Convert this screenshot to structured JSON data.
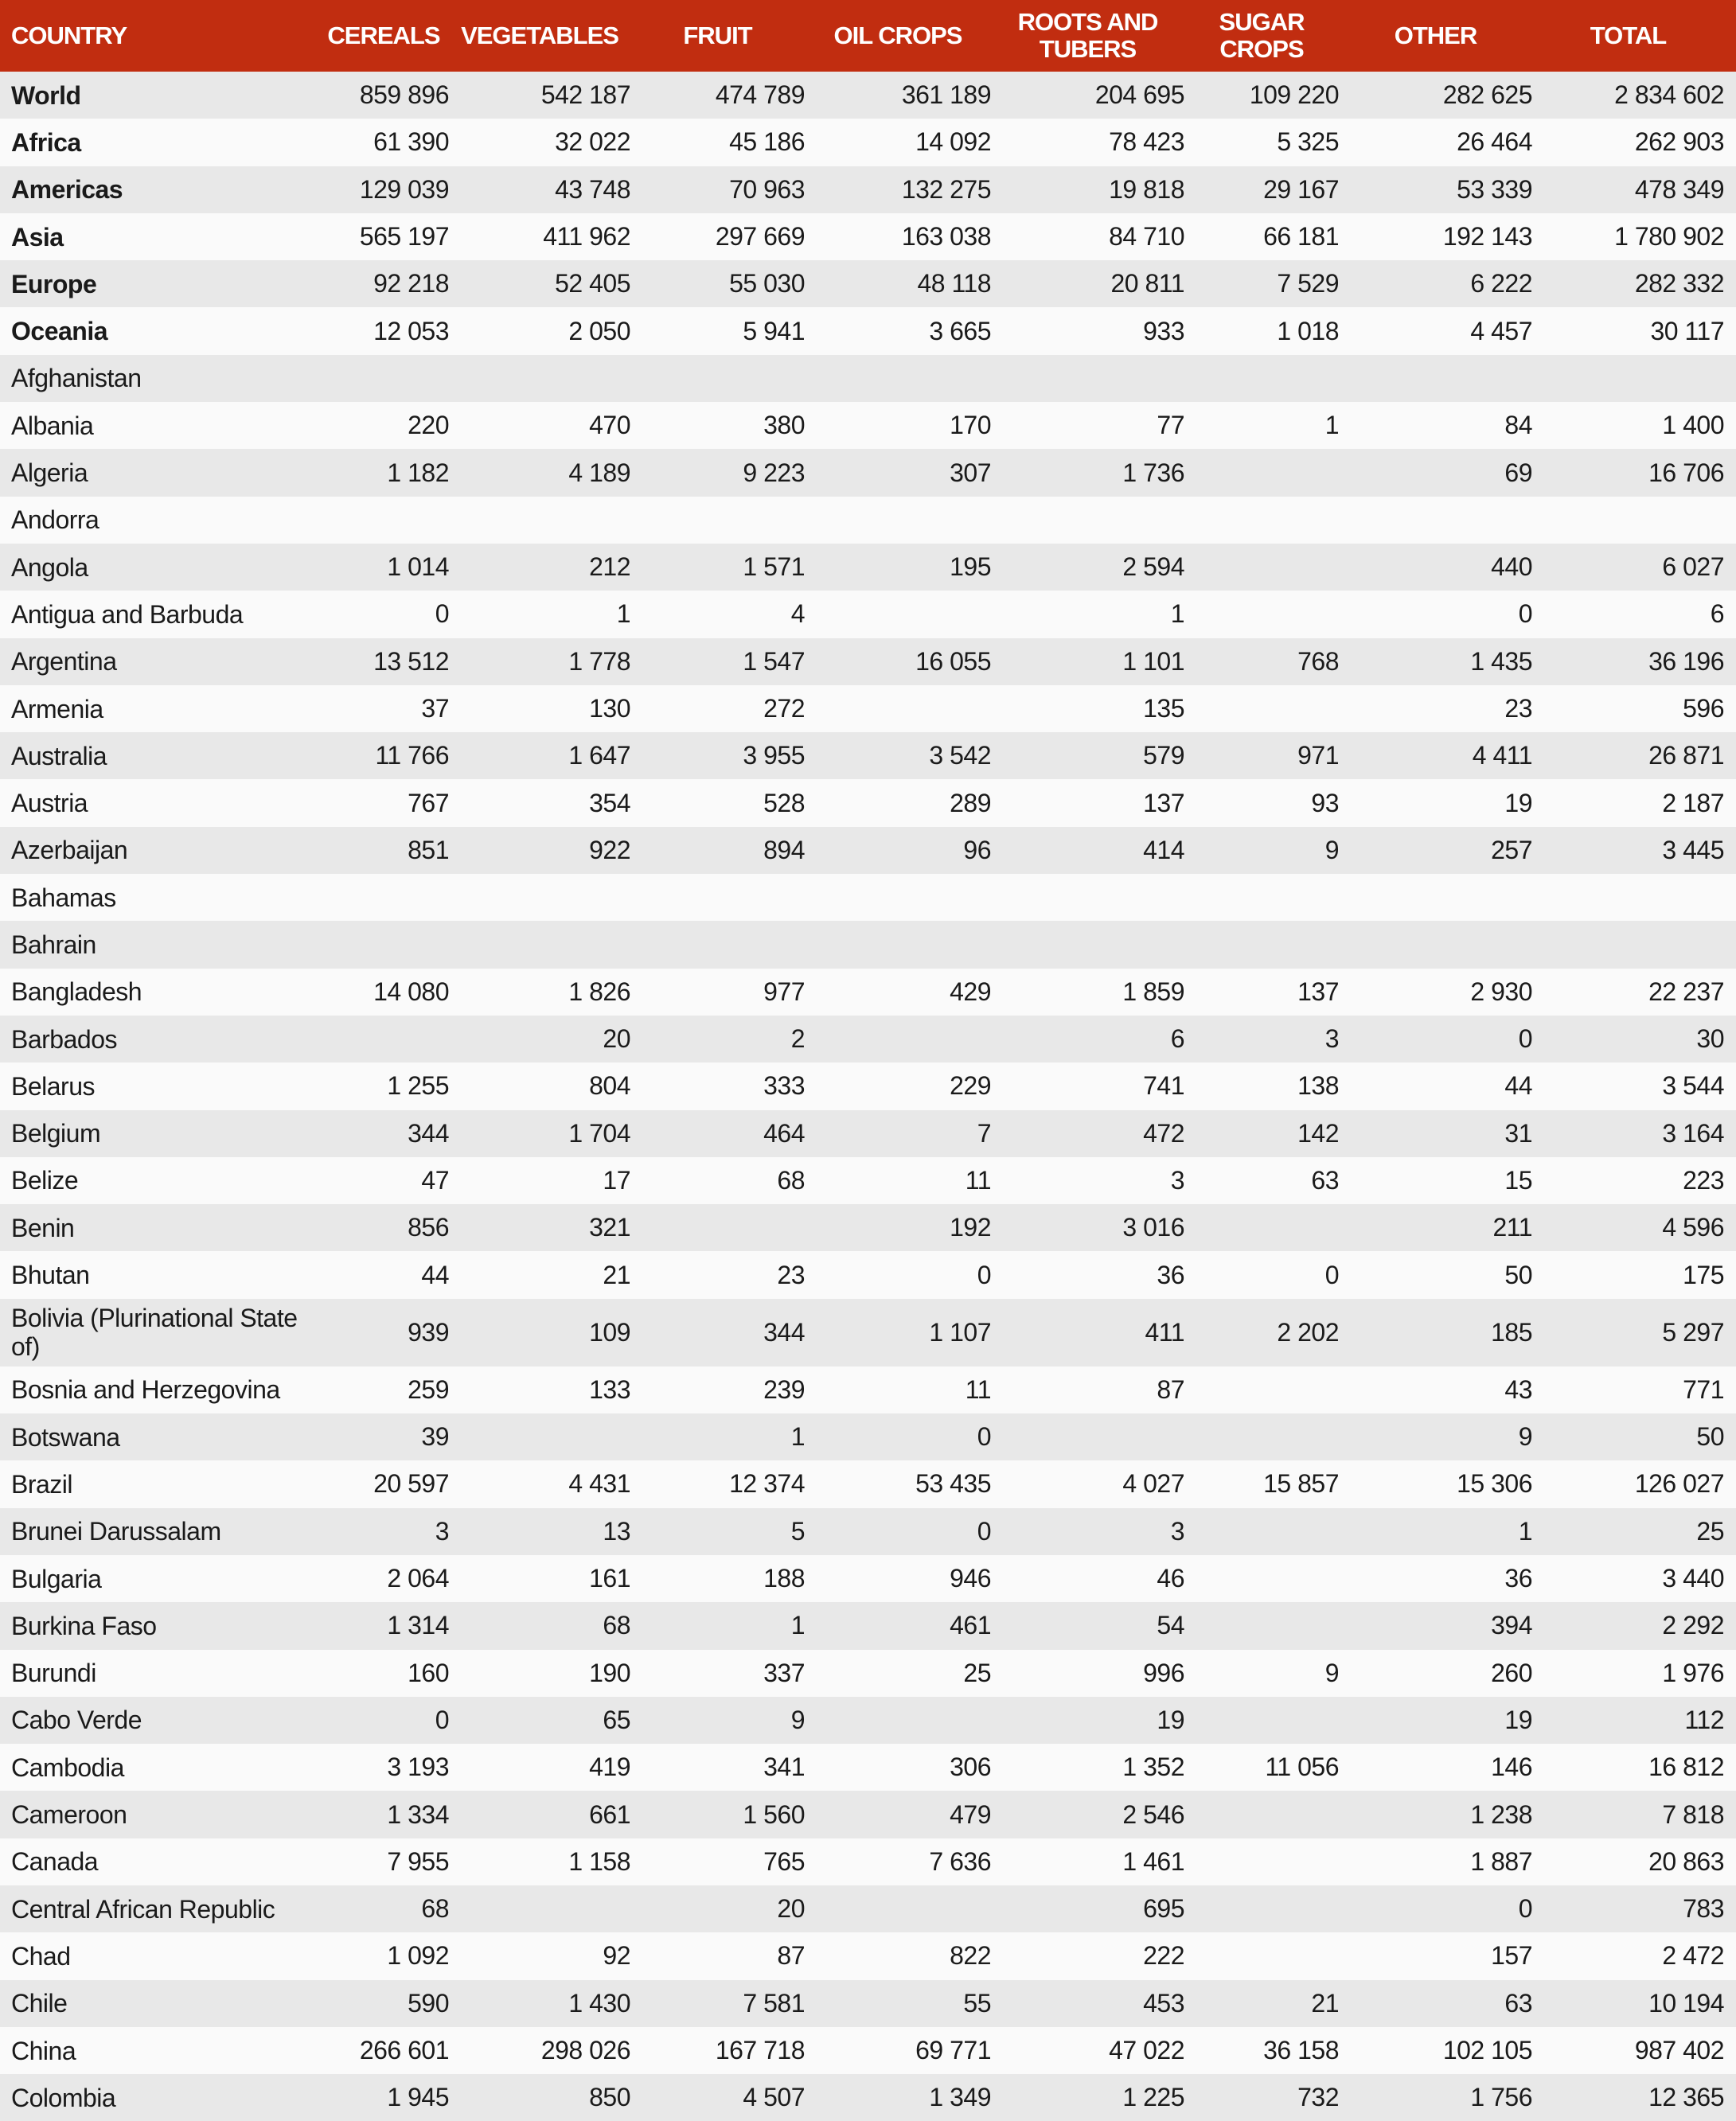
{
  "headers": [
    "COUNTRY",
    "CEREALS",
    "VEGETABLES",
    "FRUIT",
    "OIL CROPS",
    "ROOTS AND TUBERS",
    "SUGAR CROPS",
    "OTHER",
    "TOTAL"
  ],
  "colors": {
    "header_bg": "#c12d10",
    "row_shaded": "#e8e8e8",
    "row_plain": "#fafafa"
  },
  "rows": [
    {
      "name": "World",
      "bold": true,
      "values": [
        "859 896",
        "542 187",
        "474 789",
        "361 189",
        "204 695",
        "109 220",
        "282 625",
        "2 834 602"
      ]
    },
    {
      "name": "Africa",
      "bold": true,
      "values": [
        "61 390",
        "32 022",
        "45 186",
        "14 092",
        "78 423",
        "5 325",
        "26 464",
        "262 903"
      ]
    },
    {
      "name": "Americas",
      "bold": true,
      "values": [
        "129 039",
        "43 748",
        "70 963",
        "132 275",
        "19 818",
        "29 167",
        "53 339",
        "478 349"
      ]
    },
    {
      "name": "Asia",
      "bold": true,
      "values": [
        "565 197",
        "411 962",
        "297 669",
        "163 038",
        "84 710",
        "66 181",
        "192 143",
        "1 780 902"
      ]
    },
    {
      "name": "Europe",
      "bold": true,
      "values": [
        "92 218",
        "52 405",
        "55 030",
        "48 118",
        "20 811",
        "7 529",
        "6 222",
        "282 332"
      ]
    },
    {
      "name": "Oceania",
      "bold": true,
      "values": [
        "12 053",
        "2 050",
        "5 941",
        "3 665",
        "933",
        "1 018",
        "4 457",
        "30 117"
      ]
    },
    {
      "name": "Afghanistan",
      "values": [
        "",
        "",
        "",
        "",
        "",
        "",
        "",
        ""
      ]
    },
    {
      "name": "Albania",
      "values": [
        "220",
        "470",
        "380",
        "170",
        "77",
        "1",
        "84",
        "1 400"
      ]
    },
    {
      "name": "Algeria",
      "values": [
        "1 182",
        "4 189",
        "9 223",
        "307",
        "1 736",
        "",
        "69",
        "16 706"
      ]
    },
    {
      "name": "Andorra",
      "values": [
        "",
        "",
        "",
        "",
        "",
        "",
        "",
        ""
      ]
    },
    {
      "name": "Angola",
      "values": [
        "1 014",
        "212",
        "1 571",
        "195",
        "2 594",
        "",
        "440",
        "6 027"
      ]
    },
    {
      "name": "Antigua and Barbuda",
      "values": [
        "0",
        "1",
        "4",
        "",
        "1",
        "",
        "0",
        "6"
      ]
    },
    {
      "name": "Argentina",
      "values": [
        "13 512",
        "1 778",
        "1 547",
        "16 055",
        "1 101",
        "768",
        "1 435",
        "36 196"
      ]
    },
    {
      "name": "Armenia",
      "values": [
        "37",
        "130",
        "272",
        "",
        "135",
        "",
        "23",
        "596"
      ]
    },
    {
      "name": "Australia",
      "values": [
        "11 766",
        "1 647",
        "3 955",
        "3 542",
        "579",
        "971",
        "4 411",
        "26 871"
      ]
    },
    {
      "name": "Austria",
      "values": [
        "767",
        "354",
        "528",
        "289",
        "137",
        "93",
        "19",
        "2 187"
      ]
    },
    {
      "name": "Azerbaijan",
      "values": [
        "851",
        "922",
        "894",
        "96",
        "414",
        "9",
        "257",
        "3 445"
      ]
    },
    {
      "name": "Bahamas",
      "values": [
        "",
        "",
        "",
        "",
        "",
        "",
        "",
        ""
      ]
    },
    {
      "name": "Bahrain",
      "values": [
        "",
        "",
        "",
        "",
        "",
        "",
        "",
        ""
      ]
    },
    {
      "name": "Bangladesh",
      "values": [
        "14 080",
        "1 826",
        "977",
        "429",
        "1 859",
        "137",
        "2 930",
        "22 237"
      ]
    },
    {
      "name": "Barbados",
      "values": [
        "",
        "20",
        "2",
        "",
        "6",
        "3",
        "0",
        "30"
      ]
    },
    {
      "name": "Belarus",
      "values": [
        "1 255",
        "804",
        "333",
        "229",
        "741",
        "138",
        "44",
        "3 544"
      ]
    },
    {
      "name": "Belgium",
      "values": [
        "344",
        "1 704",
        "464",
        "7",
        "472",
        "142",
        "31",
        "3 164"
      ]
    },
    {
      "name": "Belize",
      "values": [
        "47",
        "17",
        "68",
        "11",
        "3",
        "63",
        "15",
        "223"
      ]
    },
    {
      "name": "Benin",
      "values": [
        "856",
        "321",
        "",
        "192",
        "3 016",
        "",
        "211",
        "4 596"
      ]
    },
    {
      "name": "Bhutan",
      "values": [
        "44",
        "21",
        "23",
        "0",
        "36",
        "0",
        "50",
        "175"
      ]
    },
    {
      "name": "Bolivia (Plurinational State of)",
      "tall": true,
      "values": [
        "939",
        "109",
        "344",
        "1 107",
        "411",
        "2 202",
        "185",
        "5 297"
      ]
    },
    {
      "name": "Bosnia and Herzegovina",
      "values": [
        "259",
        "133",
        "239",
        "11",
        "87",
        "",
        "43",
        "771"
      ]
    },
    {
      "name": "Botswana",
      "values": [
        "39",
        "",
        "1",
        "0",
        "",
        "",
        "9",
        "50"
      ]
    },
    {
      "name": "Brazil",
      "values": [
        "20 597",
        "4 431",
        "12 374",
        "53 435",
        "4 027",
        "15 857",
        "15 306",
        "126 027"
      ]
    },
    {
      "name": "Brunei Darussalam",
      "values": [
        "3",
        "13",
        "5",
        "0",
        "3",
        "",
        "1",
        "25"
      ]
    },
    {
      "name": "Bulgaria",
      "values": [
        "2 064",
        "161",
        "188",
        "946",
        "46",
        "",
        "36",
        "3 440"
      ]
    },
    {
      "name": "Burkina Faso",
      "values": [
        "1 314",
        "68",
        "1",
        "461",
        "54",
        "",
        "394",
        "2 292"
      ]
    },
    {
      "name": "Burundi",
      "values": [
        "160",
        "190",
        "337",
        "25",
        "996",
        "9",
        "260",
        "1 976"
      ]
    },
    {
      "name": "Cabo Verde",
      "values": [
        "0",
        "65",
        "9",
        "",
        "19",
        "",
        "19",
        "112"
      ]
    },
    {
      "name": "Cambodia",
      "values": [
        "3 193",
        "419",
        "341",
        "306",
        "1 352",
        "11 056",
        "146",
        "16 812"
      ]
    },
    {
      "name": "Cameroon",
      "values": [
        "1 334",
        "661",
        "1 560",
        "479",
        "2 546",
        "",
        "1 238",
        "7 818"
      ]
    },
    {
      "name": "Canada",
      "values": [
        "7 955",
        "1 158",
        "765",
        "7 636",
        "1 461",
        "",
        "1 887",
        "20 863"
      ]
    },
    {
      "name": "Central African Republic",
      "values": [
        "68",
        "",
        "20",
        "",
        "695",
        "",
        "0",
        "783"
      ]
    },
    {
      "name": "Chad",
      "values": [
        "1 092",
        "92",
        "87",
        "822",
        "222",
        "",
        "157",
        "2 472"
      ]
    },
    {
      "name": "Chile",
      "values": [
        "590",
        "1 430",
        "7 581",
        "55",
        "453",
        "21",
        "63",
        "10 194"
      ]
    },
    {
      "name": "China",
      "values": [
        "266 601",
        "298 026",
        "167 718",
        "69 771",
        "47 022",
        "36 158",
        "102 105",
        "987 402"
      ]
    },
    {
      "name": "Colombia",
      "values": [
        "1 945",
        "850",
        "4 507",
        "1 349",
        "1 225",
        "732",
        "1 756",
        "12 365"
      ]
    }
  ]
}
